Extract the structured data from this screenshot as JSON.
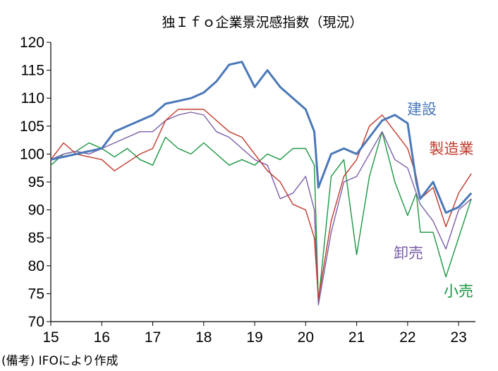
{
  "chart_data": {
    "type": "line",
    "title": "独Ｉｆｏ企業景況感指数（現況）",
    "xlabel": "",
    "ylabel": "",
    "x_ticks": [
      "15",
      "16",
      "17",
      "18",
      "19",
      "20",
      "21",
      "22",
      "23"
    ],
    "y_ticks": [
      "120",
      "115",
      "110",
      "105",
      "100",
      "95",
      "90",
      "85",
      "80",
      "75",
      "70"
    ],
    "xlim": [
      2015.0,
      2023.33
    ],
    "ylim": [
      70,
      120
    ],
    "grid": false,
    "legend": "inline-labels-right",
    "series": [
      {
        "name": "建設",
        "color": "#4a78b8",
        "x": [
          2015.0,
          2015.25,
          2015.5,
          2015.75,
          2016.0,
          2016.25,
          2016.5,
          2016.75,
          2017.0,
          2017.25,
          2017.5,
          2017.75,
          2018.0,
          2018.25,
          2018.5,
          2018.75,
          2019.0,
          2019.25,
          2019.5,
          2019.75,
          2020.0,
          2020.17,
          2020.25,
          2020.5,
          2020.75,
          2021.0,
          2021.25,
          2021.5,
          2021.75,
          2022.0,
          2022.17,
          2022.25,
          2022.5,
          2022.75,
          2023.0,
          2023.25
        ],
        "values": [
          99,
          99.5,
          100,
          100.5,
          101,
          104,
          105,
          106,
          107,
          109,
          109.5,
          110,
          111,
          113,
          116,
          116.5,
          112,
          115,
          112,
          110,
          108,
          104,
          94,
          100,
          101,
          100,
          103,
          106,
          107,
          105.5,
          95,
          92,
          95,
          89.5,
          90.5,
          93
        ]
      },
      {
        "name": "製造業",
        "color": "#c0392b",
        "x": [
          2015.0,
          2015.25,
          2015.5,
          2015.75,
          2016.0,
          2016.25,
          2016.5,
          2016.75,
          2017.0,
          2017.25,
          2017.5,
          2017.75,
          2018.0,
          2018.25,
          2018.5,
          2018.75,
          2019.0,
          2019.25,
          2019.5,
          2019.75,
          2020.0,
          2020.17,
          2020.25,
          2020.5,
          2020.75,
          2021.0,
          2021.25,
          2021.5,
          2021.75,
          2022.0,
          2022.17,
          2022.25,
          2022.5,
          2022.75,
          2023.0,
          2023.25
        ],
        "values": [
          99,
          102,
          100,
          99.5,
          99,
          97,
          98.5,
          100,
          101,
          106,
          108,
          108,
          108,
          106,
          104,
          103,
          100,
          97,
          95,
          91,
          90,
          85,
          74,
          88,
          96,
          99,
          105,
          107,
          104,
          101,
          96,
          92,
          94,
          87,
          93,
          96.5
        ]
      },
      {
        "name": "卸売",
        "color": "#7b5ea7",
        "x": [
          2015.0,
          2015.25,
          2015.5,
          2015.75,
          2016.0,
          2016.25,
          2016.5,
          2016.75,
          2017.0,
          2017.25,
          2017.5,
          2017.75,
          2018.0,
          2018.25,
          2018.5,
          2018.75,
          2019.0,
          2019.25,
          2019.5,
          2019.75,
          2020.0,
          2020.17,
          2020.25,
          2020.5,
          2020.75,
          2021.0,
          2021.25,
          2021.5,
          2021.75,
          2022.0,
          2022.17,
          2022.25,
          2022.5,
          2022.75,
          2023.0,
          2023.25
        ],
        "values": [
          99,
          100,
          100.5,
          100,
          101,
          102,
          103,
          104,
          104,
          106,
          107,
          107.5,
          107,
          104,
          103,
          101,
          99,
          98,
          92,
          93,
          96,
          90,
          73,
          86,
          95,
          96,
          100,
          104,
          99,
          97.5,
          93,
          91,
          88,
          83,
          90,
          92
        ]
      },
      {
        "name": "小売",
        "color": "#1a9641",
        "x": [
          2015.0,
          2015.25,
          2015.5,
          2015.75,
          2016.0,
          2016.25,
          2016.5,
          2016.75,
          2017.0,
          2017.25,
          2017.5,
          2017.75,
          2018.0,
          2018.25,
          2018.5,
          2018.75,
          2019.0,
          2019.25,
          2019.5,
          2019.75,
          2020.0,
          2020.17,
          2020.25,
          2020.5,
          2020.75,
          2021.0,
          2021.25,
          2021.5,
          2021.75,
          2022.0,
          2022.17,
          2022.25,
          2022.5,
          2022.75,
          2023.0,
          2023.25
        ],
        "values": [
          98,
          100,
          100.5,
          102,
          101,
          99.5,
          101,
          99,
          98,
          103,
          101,
          100,
          102,
          100,
          98,
          99,
          98,
          100,
          99,
          101,
          101,
          98,
          73.5,
          96,
          99,
          82,
          96,
          104,
          95,
          89,
          93,
          86,
          86,
          78,
          85,
          92
        ]
      }
    ],
    "annotations": [
      "(備考) IFOにより作成"
    ]
  }
}
